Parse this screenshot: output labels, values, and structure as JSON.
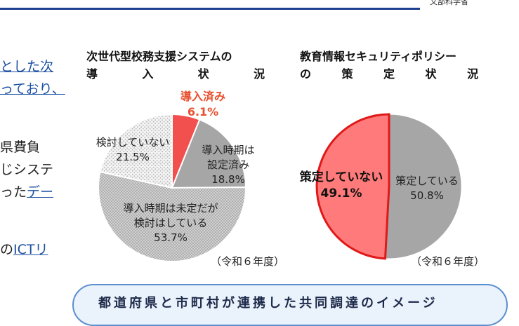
{
  "header": {
    "ministry": "文部科学省"
  },
  "left_text": {
    "line1": "とした次",
    "line2": "っており、",
    "line3": "県費負",
    "line4": "じシステ",
    "line5_plain": "った",
    "line5_link": "デー",
    "line6_plain": "の",
    "line6_link": "ICTリ"
  },
  "chart1": {
    "title_line1": "次世代型校務支援システムの",
    "title_line2": [
      "導",
      "入",
      "状",
      "況"
    ],
    "label_introduced": "導入済み",
    "label_introduced_pct": "6.1%",
    "label_set": [
      "導入時期は",
      "設定済み",
      "18.8%"
    ],
    "label_undecided": [
      "導入時期は未定だが",
      "検討はしている",
      "53.7%"
    ],
    "label_not": [
      "検討していない",
      "21.5%"
    ],
    "year": "（令和６年度）"
  },
  "chart2": {
    "title_line1": "教育情報セキュリティポリシー",
    "title_line2": [
      "の",
      "策",
      "定",
      "状",
      "況"
    ],
    "label_not": "策定していない",
    "label_not_pct": "49.1%",
    "label_done": [
      "策定している",
      "50.8%"
    ],
    "year": "（令和６年度）"
  },
  "banner": {
    "text": "都道府県と市町村が連携した共同調達のイメージ"
  },
  "chart_data": [
    {
      "type": "pie",
      "title": "次世代型校務支援システムの導入状況",
      "categories": [
        "導入済み",
        "導入時期は設定済み",
        "導入時期は未定だが検討はしている",
        "検討していない"
      ],
      "values": [
        6.1,
        18.8,
        53.7,
        21.5
      ],
      "colors": [
        "#f24f4f",
        "#a6a6a6",
        "#d9d9d9",
        "#efefef"
      ]
    },
    {
      "type": "pie",
      "title": "教育情報セキュリティポリシーの策定状況",
      "categories": [
        "策定している",
        "策定していない"
      ],
      "values": [
        50.8,
        49.1
      ],
      "colors": [
        "#a6a6a6",
        "#ff7a7a"
      ]
    }
  ]
}
